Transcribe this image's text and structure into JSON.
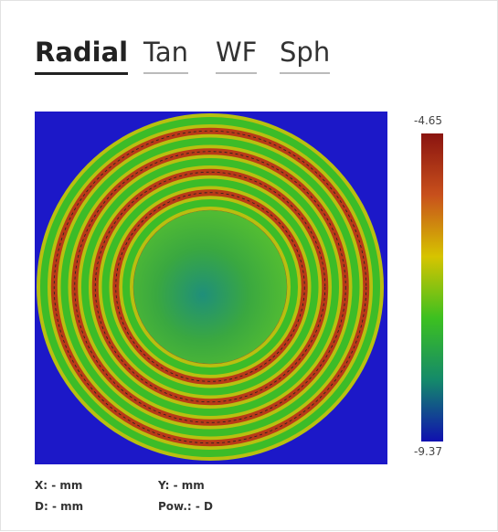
{
  "tabs": [
    "Radial",
    "Tan",
    "WF",
    "Sph"
  ],
  "colorbar": {
    "max": -4.65,
    "min": -9.37
  },
  "readouts": {
    "x": "X: - mm",
    "y": "Y: - mm",
    "d": "D: - mm",
    "pow": "Pow.: - D"
  }
}
